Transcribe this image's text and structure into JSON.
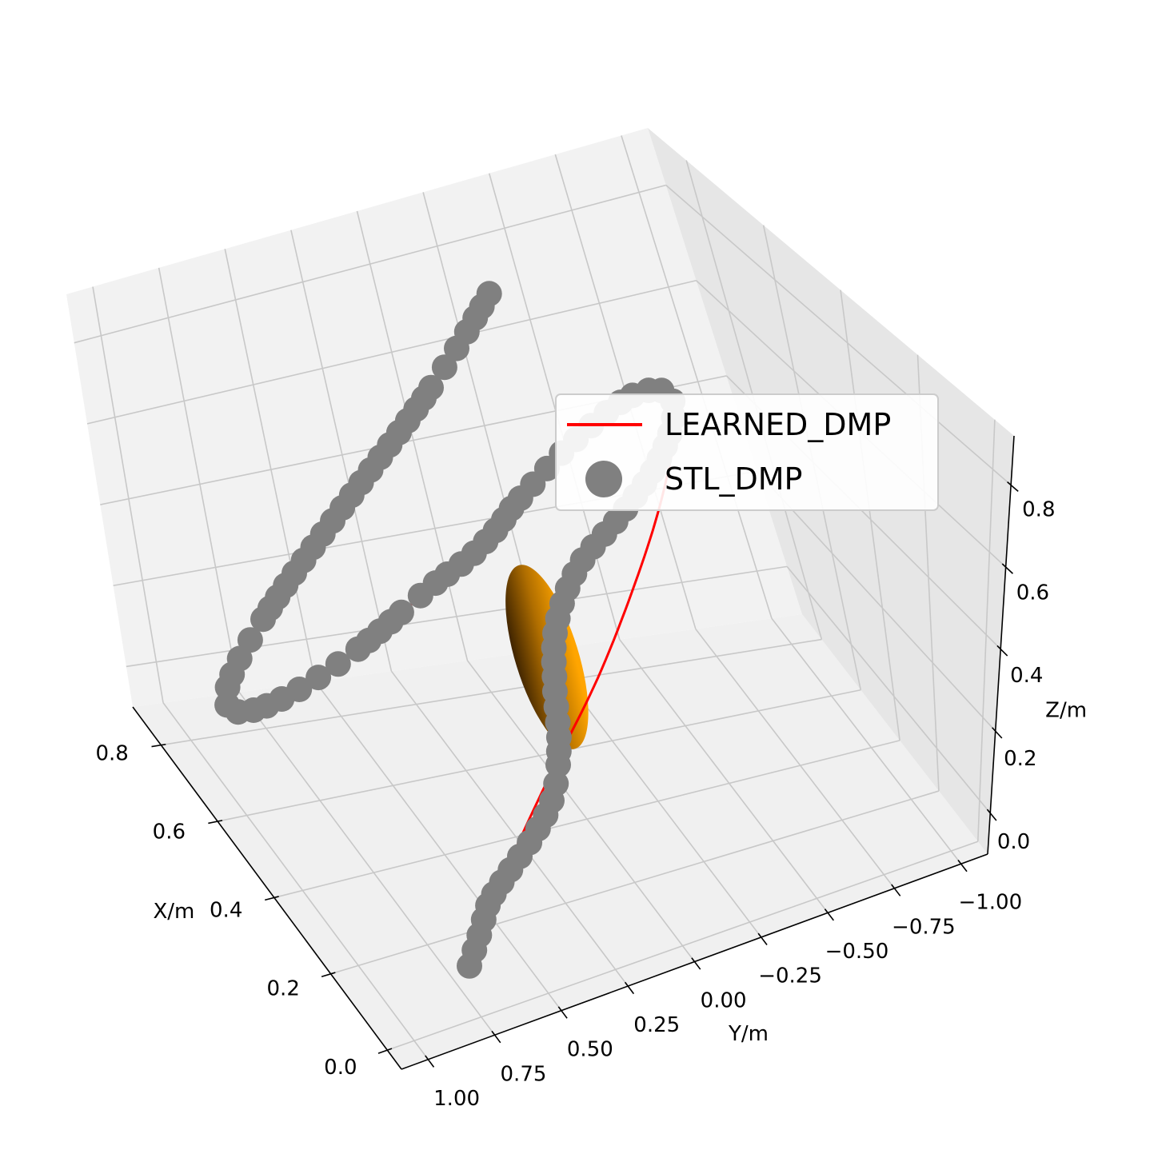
{
  "chart_data": {
    "type": "3d-line-scatter",
    "title": "",
    "xlabel": "X/m",
    "ylabel": "Y/m",
    "zlabel": "Z/m",
    "xlim": [
      -0.05,
      0.9
    ],
    "ylim": [
      -1.1,
      1.1
    ],
    "zlim": [
      -0.1,
      0.92
    ],
    "x_ticks": [
      0.0,
      0.2,
      0.4,
      0.6,
      0.8
    ],
    "x_tick_labels": [
      "0.0",
      "0.2",
      "0.4",
      "0.6",
      "0.8"
    ],
    "y_ticks": [
      1.0,
      0.75,
      0.5,
      0.25,
      0.0,
      -0.25,
      -0.5,
      -0.75,
      -1.0
    ],
    "y_tick_labels": [
      "1.00",
      "0.75",
      "0.50",
      "0.25",
      "0.00",
      "−0.25",
      "−0.50",
      "−0.75",
      "−1.00"
    ],
    "z_ticks": [
      0.0,
      0.2,
      0.4,
      0.6,
      0.8
    ],
    "z_tick_labels": [
      "0.0",
      "0.2",
      "0.4",
      "0.6",
      "0.8"
    ],
    "grid": true,
    "legend_position": "center-right",
    "series": [
      {
        "name": "LEARNED_DMP",
        "kind": "line",
        "color": "#ff0000",
        "points": [
          [
            0.05,
            0.68,
            -0.03
          ],
          [
            0.12,
            0.53,
            -0.0
          ],
          [
            0.22,
            0.32,
            0.04
          ],
          [
            0.34,
            0.07,
            0.09
          ],
          [
            0.47,
            -0.2,
            0.15
          ],
          [
            0.59,
            -0.45,
            0.24
          ],
          [
            0.68,
            -0.65,
            0.34
          ],
          [
            0.75,
            -0.79,
            0.43
          ],
          [
            0.77,
            -0.8,
            0.49
          ],
          [
            0.7,
            -0.63,
            0.55
          ],
          [
            0.58,
            -0.35,
            0.58
          ],
          [
            0.44,
            -0.05,
            0.59
          ],
          [
            0.3,
            0.25,
            0.6
          ],
          [
            0.18,
            0.53,
            0.61
          ],
          [
            0.1,
            0.75,
            0.63
          ],
          [
            0.08,
            0.85,
            0.66
          ],
          [
            0.12,
            0.81,
            0.7
          ],
          [
            0.22,
            0.63,
            0.75
          ],
          [
            0.35,
            0.35,
            0.81
          ],
          [
            0.48,
            0.06,
            0.86
          ],
          [
            0.58,
            -0.16,
            0.9
          ],
          [
            0.63,
            -0.27,
            0.92
          ]
        ]
      },
      {
        "name": "STL_DMP",
        "kind": "scatter",
        "color": "#808080",
        "points": [
          [
            0.05,
            0.68,
            -0.03
          ],
          [
            0.09,
            0.58,
            -0.0
          ],
          [
            0.13,
            0.5,
            0.02
          ],
          [
            0.18,
            0.38,
            0.03
          ],
          [
            0.24,
            0.24,
            0.04
          ],
          [
            0.3,
            0.12,
            0.06
          ],
          [
            0.38,
            0.02,
            0.1
          ],
          [
            0.47,
            -0.06,
            0.16
          ],
          [
            0.55,
            -0.15,
            0.22
          ],
          [
            0.62,
            -0.3,
            0.28
          ],
          [
            0.67,
            -0.5,
            0.33
          ],
          [
            0.72,
            -0.68,
            0.38
          ],
          [
            0.76,
            -0.8,
            0.44
          ],
          [
            0.77,
            -0.8,
            0.49
          ],
          [
            0.7,
            -0.63,
            0.55
          ],
          [
            0.58,
            -0.35,
            0.58
          ],
          [
            0.46,
            -0.1,
            0.59
          ],
          [
            0.42,
            -0.02,
            0.585
          ],
          [
            0.36,
            0.1,
            0.59
          ],
          [
            0.3,
            0.25,
            0.6
          ],
          [
            0.18,
            0.53,
            0.61
          ],
          [
            0.1,
            0.75,
            0.63
          ],
          [
            0.08,
            0.85,
            0.66
          ],
          [
            0.12,
            0.81,
            0.7
          ],
          [
            0.22,
            0.63,
            0.75
          ],
          [
            0.35,
            0.35,
            0.81
          ],
          [
            0.48,
            0.06,
            0.86
          ],
          [
            0.58,
            -0.16,
            0.9
          ],
          [
            0.63,
            -0.27,
            0.92
          ]
        ]
      }
    ],
    "obstacle": {
      "shape": "ellipsoid",
      "center": [
        0.44,
        -0.05,
        0.25
      ],
      "radii": [
        0.1,
        0.1,
        0.22
      ],
      "color_light": "#ffa500",
      "color_dark": "#2a1600"
    },
    "colors": {
      "pane_floor": "#f0f0f0",
      "pane_left": "#f2f2f2",
      "pane_right": "#e6e6e6",
      "grid": "#c8c8c8",
      "axis_line": "#000000"
    }
  }
}
